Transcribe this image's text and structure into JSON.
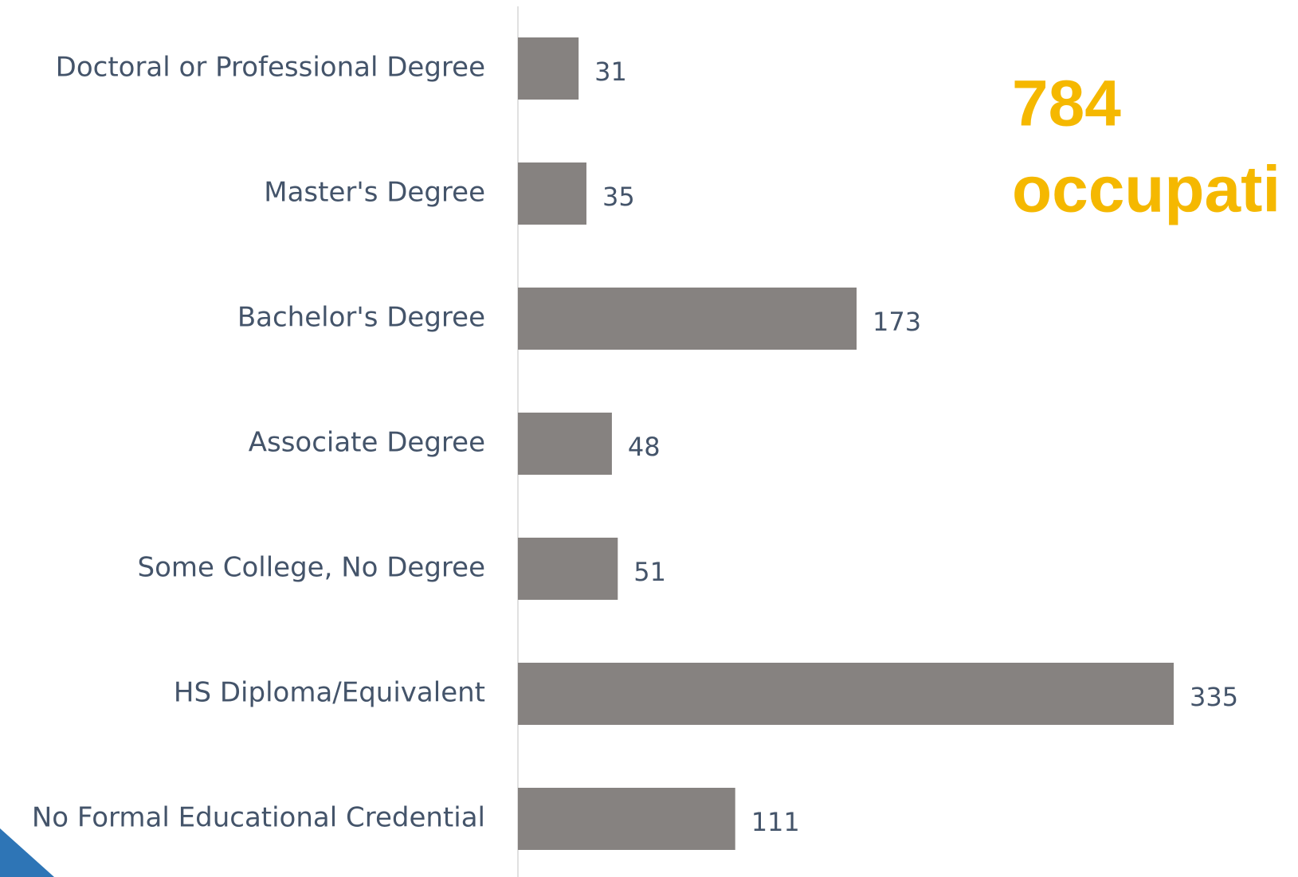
{
  "chart_data": {
    "type": "bar",
    "orientation": "horizontal",
    "categories": [
      "Doctoral or Professional Degree",
      "Master's Degree",
      "Bachelor's Degree",
      "Associate Degree",
      "Some College, No Degree",
      "HS Diploma/Equivalent",
      "No Formal Educational Credential"
    ],
    "values": [
      31,
      35,
      173,
      48,
      51,
      335,
      111
    ],
    "color": "#868280",
    "annotation": [
      "784",
      "occupati"
    ]
  }
}
